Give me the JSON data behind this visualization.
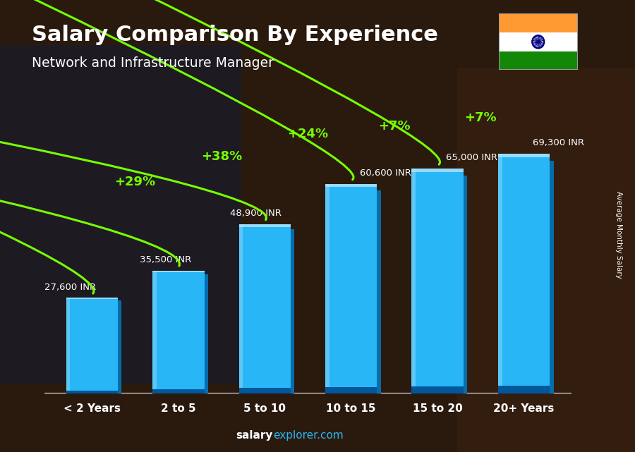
{
  "title": "Salary Comparison By Experience",
  "subtitle": "Network and Infrastructure Manager",
  "categories": [
    "< 2 Years",
    "2 to 5",
    "5 to 10",
    "10 to 15",
    "15 to 20",
    "20+ Years"
  ],
  "values": [
    27600,
    35500,
    48900,
    60600,
    65000,
    69300
  ],
  "labels": [
    "27,600 INR",
    "35,500 INR",
    "48,900 INR",
    "60,600 INR",
    "65,000 INR",
    "69,300 INR"
  ],
  "pct_labels": [
    "+29%",
    "+38%",
    "+24%",
    "+7%",
    "+7%"
  ],
  "bar_color": "#29b6f6",
  "bar_edge": "#4dd0e1",
  "bar_dark": "#0277bd",
  "bar_light": "#81d4fa",
  "background_color": "#3a2a1a",
  "text_color": "#ffffff",
  "green_color": "#76ff03",
  "ylabel": "Average Monthly Salary",
  "footer_salary": "salary",
  "footer_rest": "explorer.com",
  "ylim": [
    0,
    85000
  ],
  "flag_colors": [
    "#FF9933",
    "#ffffff",
    "#138808"
  ],
  "chakra_color": "#000080"
}
